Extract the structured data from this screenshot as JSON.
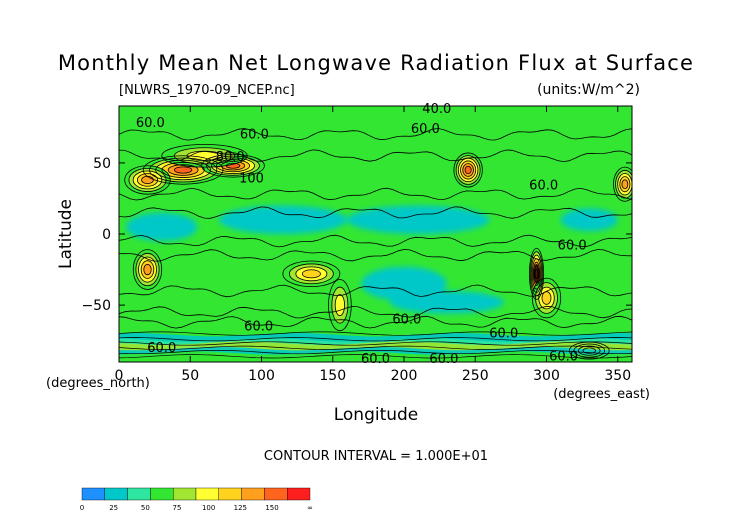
{
  "chart_data": {
    "type": "contour",
    "title": "Monthly Mean Net Longwave Radiation Flux at Surface",
    "subtitle_left": "[NLWRS_1970-09_NCEP.nc]",
    "subtitle_right": "(units:W/m^2)",
    "xlabel": "Longitude",
    "ylabel": "Latitude",
    "x_unit_label": "(degrees_east)",
    "y_unit_label": "(degrees_north)",
    "xlim": [
      0,
      360
    ],
    "ylim": [
      -90,
      90
    ],
    "x_ticks": [
      {
        "value": 0,
        "label": "0"
      },
      {
        "value": 50,
        "label": "50"
      },
      {
        "value": 100,
        "label": "100"
      },
      {
        "value": 150,
        "label": "150"
      },
      {
        "value": 200,
        "label": "200"
      },
      {
        "value": 250,
        "label": "250"
      },
      {
        "value": 300,
        "label": "300"
      },
      {
        "value": 350,
        "label": "350"
      }
    ],
    "y_ticks": [
      {
        "value": 50,
        "label": "50"
      },
      {
        "value": 0,
        "label": "0"
      },
      {
        "value": -50,
        "label": "−50"
      }
    ],
    "contour_interval_label": "CONTOUR INTERVAL = 1.000E+01",
    "contour_labels": [
      {
        "text": "60.0",
        "lon": 22,
        "lat": 78
      },
      {
        "text": "60.0",
        "lon": 95,
        "lat": 70
      },
      {
        "text": "40.0",
        "lon": 223,
        "lat": 88
      },
      {
        "text": "60.0",
        "lon": 215,
        "lat": 74
      },
      {
        "text": "80.0",
        "lon": 78,
        "lat": 54
      },
      {
        "text": "100",
        "lon": 93,
        "lat": 39
      },
      {
        "text": "60.0",
        "lon": 298,
        "lat": 34
      },
      {
        "text": "60.0",
        "lon": 318,
        "lat": -8
      },
      {
        "text": "60.0",
        "lon": 98,
        "lat": -65
      },
      {
        "text": "60.0",
        "lon": 202,
        "lat": -60
      },
      {
        "text": "60.0",
        "lon": 270,
        "lat": -70
      },
      {
        "text": "60.0",
        "lon": 30,
        "lat": -80
      },
      {
        "text": "60.0",
        "lon": 180,
        "lat": -88
      },
      {
        "text": "60.0",
        "lon": 228,
        "lat": -88
      },
      {
        "text": "60.0",
        "lon": 312,
        "lat": -86
      }
    ],
    "colorbar": {
      "colors": [
        "#1e90ff",
        "#00c8c8",
        "#2ee6a0",
        "#32e632",
        "#a0e632",
        "#ffff32",
        "#ffd21e",
        "#ff9f1e",
        "#ff641e",
        "#ff1e1e"
      ],
      "tick_labels": [
        "0",
        "25",
        "50",
        "75",
        "100",
        "125",
        "150",
        "∞"
      ]
    },
    "field_blobs": [
      {
        "lon": 45,
        "lat": 45,
        "rlon": 28,
        "rlat": 10,
        "level": 8
      },
      {
        "lon": 20,
        "lat": 38,
        "rlon": 16,
        "rlat": 10,
        "level": 7
      },
      {
        "lon": 80,
        "lat": 48,
        "rlon": 22,
        "rlat": 8,
        "level": 8
      },
      {
        "lon": 60,
        "lat": 55,
        "rlon": 30,
        "rlat": 8,
        "level": 5
      },
      {
        "lon": 245,
        "lat": 45,
        "rlon": 10,
        "rlat": 12,
        "level": 8
      },
      {
        "lon": 355,
        "lat": 35,
        "rlon": 8,
        "rlat": 12,
        "level": 7
      },
      {
        "lon": 20,
        "lat": -25,
        "rlon": 10,
        "rlat": 14,
        "level": 7
      },
      {
        "lon": 135,
        "lat": -28,
        "rlon": 20,
        "rlat": 9,
        "level": 6
      },
      {
        "lon": 155,
        "lat": -50,
        "rlon": 8,
        "rlat": 18,
        "level": 5
      },
      {
        "lon": 293,
        "lat": -28,
        "rlon": 5,
        "rlat": 18,
        "level": 9
      },
      {
        "lon": 300,
        "lat": -45,
        "rlon": 10,
        "rlat": 14,
        "level": 6
      },
      {
        "lon": 330,
        "lat": -82,
        "rlon": 14,
        "rlat": 6,
        "level": 6
      }
    ],
    "cool_blobs": [
      {
        "lon": 115,
        "lat": 10,
        "rlon": 45,
        "rlat": 10,
        "level": 1
      },
      {
        "lon": 210,
        "lat": 10,
        "rlon": 50,
        "rlat": 10,
        "level": 1
      },
      {
        "lon": 30,
        "lat": 5,
        "rlon": 25,
        "rlat": 10,
        "level": 1
      },
      {
        "lon": 330,
        "lat": 10,
        "rlon": 20,
        "rlat": 8,
        "level": 1
      },
      {
        "lon": 200,
        "lat": -35,
        "rlon": 30,
        "rlat": 12,
        "level": 1
      },
      {
        "lon": 230,
        "lat": -48,
        "rlon": 40,
        "rlat": 8,
        "level": 1
      }
    ]
  }
}
